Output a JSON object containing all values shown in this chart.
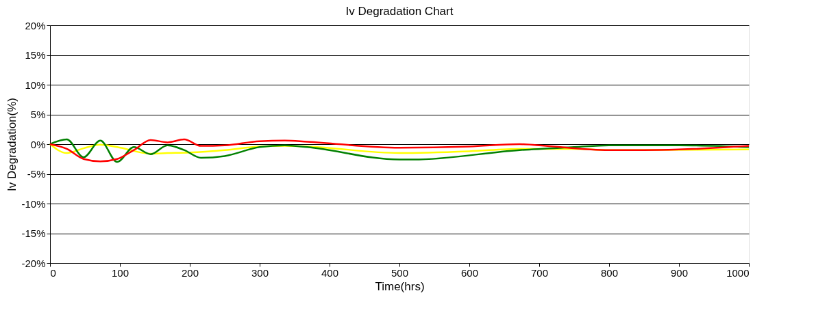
{
  "chart_data": {
    "type": "line",
    "title": "Iv Degradation Chart",
    "xlabel": "Time(hrs)",
    "ylabel": "Iv Degradation(%)",
    "xlim": [
      0,
      1000
    ],
    "xticks": [
      0,
      100,
      200,
      300,
      400,
      500,
      600,
      700,
      800,
      900,
      1000
    ],
    "ylim": [
      -20,
      20
    ],
    "yticks": [
      {
        "value": -20,
        "label": "-20%"
      },
      {
        "value": -15,
        "label": "-15%"
      },
      {
        "value": -10,
        "label": "-10%"
      },
      {
        "value": -5,
        "label": "-5%"
      },
      {
        "value": 0,
        "label": "0%"
      },
      {
        "value": 5,
        "label": "5%"
      },
      {
        "value": 10,
        "label": "10%"
      },
      {
        "value": 15,
        "label": "15%"
      },
      {
        "value": 20,
        "label": "20%"
      }
    ],
    "grid": "y",
    "marker": "none",
    "line_style": "solid",
    "series": [
      {
        "color": "#ffff00",
        "x": [
          0,
          24,
          48,
          72,
          96,
          144,
          168,
          200,
          250,
          300,
          336,
          368,
          500,
          600,
          672,
          750,
          800,
          1000
        ],
        "values": [
          0,
          -1.5,
          -0.7,
          -0.1,
          -0.5,
          -1.6,
          -1.5,
          -1.4,
          -1.0,
          -0.4,
          -0.3,
          -0.4,
          -1.5,
          -1.2,
          -0.8,
          -0.8,
          -1.0,
          -0.9
        ]
      },
      {
        "color": "#008000",
        "x": [
          0,
          24,
          48,
          72,
          96,
          120,
          144,
          168,
          192,
          216,
          250,
          300,
          336,
          368,
          500,
          520,
          672,
          750,
          800,
          900,
          1000
        ],
        "values": [
          0,
          0.8,
          -2.2,
          0.6,
          -3.0,
          -0.5,
          -1.7,
          -0.2,
          -1.0,
          -2.3,
          -2.0,
          -0.5,
          -0.2,
          -0.5,
          -2.6,
          -2.6,
          -1.0,
          -0.5,
          -0.2,
          -0.2,
          -0.5
        ]
      },
      {
        "color": "#ff0000",
        "x": [
          0,
          24,
          48,
          72,
          96,
          120,
          144,
          168,
          192,
          216,
          250,
          300,
          336,
          368,
          500,
          600,
          672,
          700,
          800,
          850,
          900,
          1000
        ],
        "values": [
          0,
          -0.8,
          -2.5,
          -2.9,
          -2.5,
          -1.0,
          0.7,
          0.3,
          0.8,
          -0.3,
          -0.2,
          0.5,
          0.6,
          0.4,
          -0.6,
          -0.4,
          0,
          -0.2,
          -1.0,
          -1.0,
          -0.9,
          -0.3
        ]
      }
    ]
  }
}
